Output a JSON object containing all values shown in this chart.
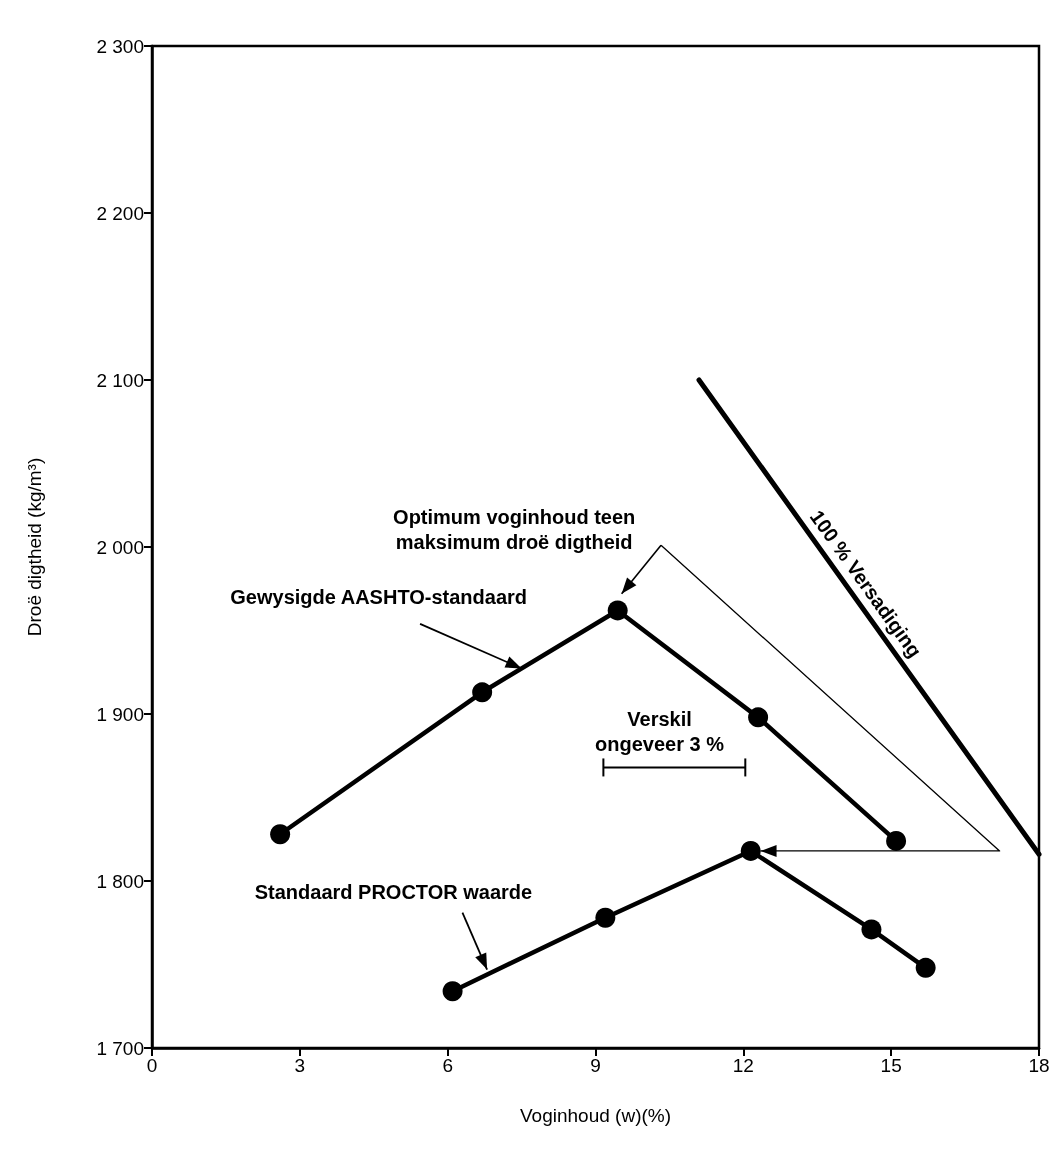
{
  "chart_data": {
    "type": "line",
    "xlabel": "Voginhoud (w)(%)",
    "ylabel": "Droë digtheid (kg/m³)",
    "xlim": [
      0,
      18
    ],
    "xticks": [
      0,
      3,
      6,
      9,
      12,
      15,
      18
    ],
    "ylim": [
      1700,
      2300
    ],
    "yticks": [
      {
        "value": 1700,
        "label": "1 700"
      },
      {
        "value": 1800,
        "label": "1 800"
      },
      {
        "value": 1900,
        "label": "1 900"
      },
      {
        "value": 2000,
        "label": "2 000"
      },
      {
        "value": 2100,
        "label": "2 100"
      },
      {
        "value": 2200,
        "label": "2 200"
      },
      {
        "value": 2300,
        "label": "2 300"
      }
    ],
    "series": [
      {
        "name": "Gewysigde AASHTO-standaard",
        "color": "#000000",
        "marker": "circle",
        "x": [
          2.6,
          6.7,
          9.45,
          12.3,
          15.1
        ],
        "values": [
          1828,
          1913,
          1962,
          1898,
          1824
        ]
      },
      {
        "name": "Standaard PROCTOR waarde",
        "color": "#000000",
        "marker": "circle",
        "x": [
          6.1,
          9.2,
          12.15,
          14.6,
          15.7
        ],
        "values": [
          1734,
          1778,
          1818,
          1771,
          1748
        ]
      },
      {
        "name": "100 % Versadiging",
        "color": "#000000",
        "marker": "none",
        "x": [
          11.1,
          18
        ],
        "values": [
          2100,
          1816
        ]
      }
    ],
    "annotations": [
      "Optimum voginhoud teen\nmaksimum droë digtheid",
      "Verskil\nongeveer 3 %"
    ],
    "grid": false,
    "legend": false
  }
}
